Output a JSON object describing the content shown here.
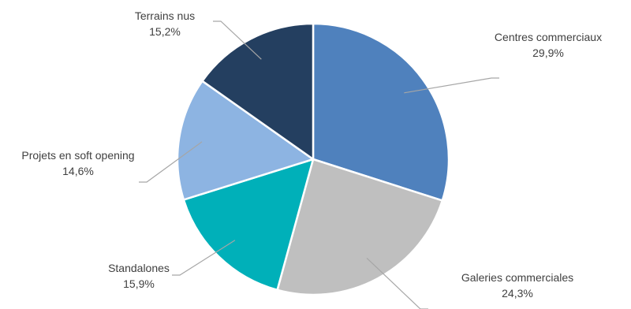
{
  "chart_data": {
    "type": "pie",
    "title": "",
    "start_angle_deg": 0,
    "direction": "clockwise",
    "colors_note": "slice colors per category",
    "slices": [
      {
        "label": "Centres commerciaux",
        "value": 29.9,
        "value_label": "29,9%",
        "color": "#4f81bd"
      },
      {
        "label": "Galeries commerciales",
        "value": 24.3,
        "value_label": "24,3%",
        "color": "#bfbfbf"
      },
      {
        "label": "Standalones",
        "value": 15.9,
        "value_label": "15,9%",
        "color": "#00b0b9"
      },
      {
        "label": "Projets en soft opening",
        "value": 14.6,
        "value_label": "14,6%",
        "color": "#8db4e2"
      },
      {
        "label": "Terrains nus",
        "value": 15.2,
        "value_label": "15,2%",
        "color": "#243f60"
      }
    ]
  }
}
